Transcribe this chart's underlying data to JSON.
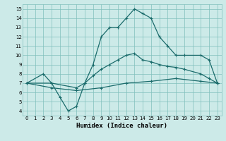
{
  "title": "",
  "xlabel": "Humidex (Indice chaleur)",
  "bg_color": "#cceae8",
  "grid_color": "#80c0bc",
  "line_color": "#1a6b6b",
  "xlim": [
    -0.5,
    23.5
  ],
  "ylim": [
    3.5,
    15.5
  ],
  "xticks": [
    0,
    1,
    2,
    3,
    4,
    5,
    6,
    7,
    8,
    9,
    10,
    11,
    12,
    13,
    14,
    15,
    16,
    17,
    18,
    19,
    20,
    21,
    22,
    23
  ],
  "yticks": [
    4,
    5,
    6,
    7,
    8,
    9,
    10,
    11,
    12,
    13,
    14,
    15
  ],
  "line1_x": [
    0,
    2,
    3,
    4,
    5,
    6,
    7,
    8,
    9,
    10,
    11,
    12,
    13,
    14,
    15,
    16,
    17,
    18,
    19,
    21,
    22,
    23
  ],
  "line1_y": [
    7,
    8,
    7,
    5.5,
    4,
    4.5,
    7,
    9,
    12,
    13,
    13,
    14,
    15,
    14.5,
    14,
    12,
    11,
    10,
    10,
    10,
    9.5,
    7
  ],
  "line2_x": [
    0,
    3,
    6,
    7,
    8,
    9,
    10,
    11,
    12,
    13,
    14,
    15,
    16,
    17,
    18,
    19,
    21,
    22,
    23
  ],
  "line2_y": [
    7,
    7,
    6.5,
    7,
    7.8,
    8.5,
    9,
    9.5,
    10,
    10.2,
    9.5,
    9.3,
    9,
    8.8,
    8.7,
    8.5,
    8,
    7.5,
    7
  ],
  "line3_x": [
    0,
    3,
    6,
    9,
    12,
    15,
    18,
    21,
    23
  ],
  "line3_y": [
    7,
    6.5,
    6.2,
    6.5,
    7,
    7.2,
    7.5,
    7.2,
    7
  ]
}
